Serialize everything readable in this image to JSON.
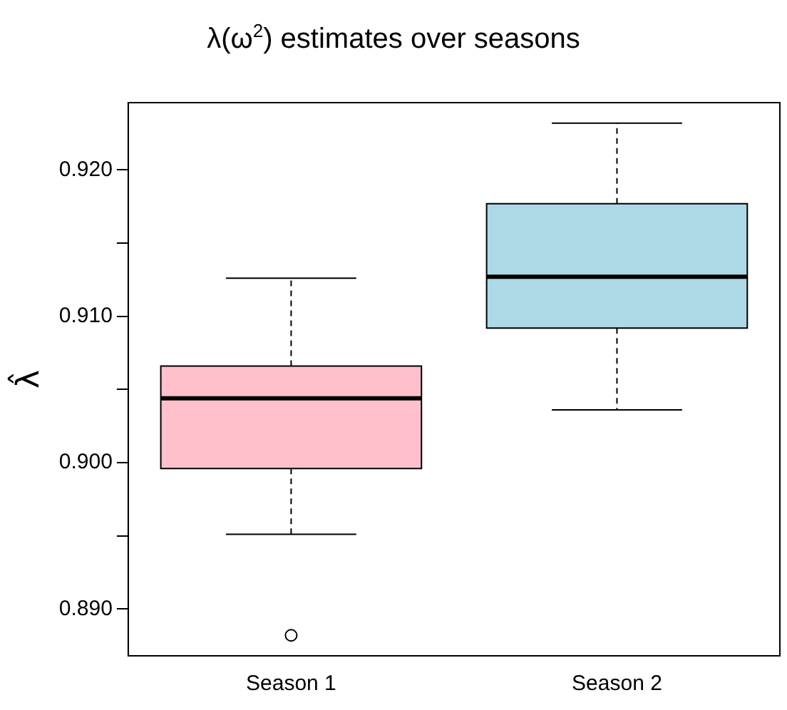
{
  "chart_data": {
    "type": "box",
    "title": "λ(ω$^{2}$) estimates over seasons",
    "ylabel": "λ̂",
    "categories": [
      "Season 1",
      "Season 2"
    ],
    "colors": [
      "#ffc0cb",
      "#add8e6"
    ],
    "boxes": [
      {
        "low": 0.8951,
        "q1": 0.8996,
        "median": 0.9044,
        "q3": 0.9066,
        "high": 0.9126,
        "outliers": [
          0.8882
        ]
      },
      {
        "low": 0.9036,
        "q1": 0.9092,
        "median": 0.9127,
        "q3": 0.9177,
        "high": 0.9232
      }
    ],
    "ylim": [
      0.8868,
      0.9246
    ],
    "yticks": [
      {
        "value": 0.89,
        "label": "0.890"
      },
      {
        "value": 0.895,
        "label": null
      },
      {
        "value": 0.9,
        "label": "0.900"
      },
      {
        "value": 0.905,
        "label": null
      },
      {
        "value": 0.91,
        "label": "0.910"
      },
      {
        "value": 0.915,
        "label": null
      },
      {
        "value": 0.92,
        "label": "0.920"
      }
    ],
    "grid": false,
    "legend": false
  }
}
